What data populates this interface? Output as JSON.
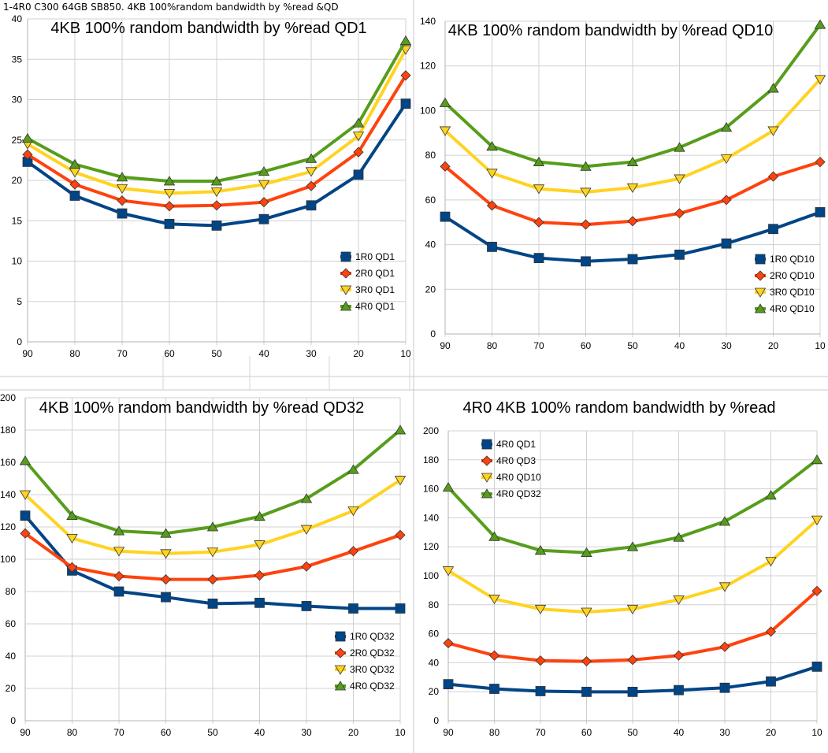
{
  "sheet_header": "1-4R0 C300 64GB SB850. 4KB 100%random bandwidth by %read  &QD",
  "chart_data": [
    {
      "type": "line",
      "title": "4KB 100% random bandwidth by %read QD1",
      "xlabel": "",
      "ylabel": "",
      "categories": [
        "90",
        "80",
        "70",
        "60",
        "50",
        "40",
        "30",
        "20",
        "10"
      ],
      "ylim": [
        0,
        40
      ],
      "ystep": 5,
      "legend": "bottom-right",
      "series": [
        {
          "name": "1R0 QD1",
          "color": "#004586",
          "marker": "square",
          "values": [
            22.3,
            18.1,
            15.9,
            14.6,
            14.4,
            15.2,
            16.9,
            20.7,
            29.5
          ]
        },
        {
          "name": "2R0 QD1",
          "color": "#ff420e",
          "marker": "diamond",
          "values": [
            23.2,
            19.5,
            17.5,
            16.8,
            16.9,
            17.3,
            19.3,
            23.5,
            33.0
          ]
        },
        {
          "name": "3R0 QD1",
          "color": "#ffd320",
          "marker": "triangle-down",
          "values": [
            24.5,
            21.0,
            19.0,
            18.4,
            18.6,
            19.5,
            21.1,
            25.5,
            36.2
          ]
        },
        {
          "name": "4R0 QD1",
          "color": "#579d1c",
          "marker": "triangle-up",
          "values": [
            25.2,
            22.0,
            20.4,
            19.9,
            19.9,
            21.1,
            22.7,
            27.1,
            37.3
          ]
        }
      ]
    },
    {
      "type": "line",
      "title": "4KB 100% random bandwidth by %read QD10",
      "xlabel": "",
      "ylabel": "",
      "categories": [
        "90",
        "80",
        "70",
        "60",
        "50",
        "40",
        "30",
        "20",
        "10"
      ],
      "ylim": [
        0,
        140
      ],
      "ystep": 20,
      "legend": "bottom-right",
      "series": [
        {
          "name": "1R0 QD10",
          "color": "#004586",
          "marker": "square",
          "values": [
            52.5,
            39.0,
            34.0,
            32.5,
            33.5,
            35.5,
            40.5,
            47.0,
            54.5
          ]
        },
        {
          "name": "2R0 QD10",
          "color": "#ff420e",
          "marker": "diamond",
          "values": [
            75.0,
            57.5,
            50.0,
            49.0,
            50.5,
            54.0,
            60.0,
            70.5,
            77.0
          ]
        },
        {
          "name": "3R0 QD10",
          "color": "#ffd320",
          "marker": "triangle-down",
          "values": [
            91.0,
            72.0,
            65.0,
            63.5,
            65.5,
            69.5,
            78.5,
            91.0,
            114.0
          ]
        },
        {
          "name": "4R0 QD10",
          "color": "#579d1c",
          "marker": "triangle-up",
          "values": [
            103.5,
            84.0,
            77.0,
            75.0,
            77.0,
            83.5,
            92.5,
            110.0,
            138.5
          ]
        }
      ]
    },
    {
      "type": "line",
      "title": "4KB 100% random bandwidth by %read QD32",
      "xlabel": "",
      "ylabel": "",
      "categories": [
        "90",
        "80",
        "70",
        "60",
        "50",
        "40",
        "30",
        "20",
        "10"
      ],
      "ylim": [
        0,
        200
      ],
      "ystep": 20,
      "legend": "bottom-right",
      "series": [
        {
          "name": "1R0 QD32",
          "color": "#004586",
          "marker": "square",
          "values": [
            127,
            93,
            80,
            76.5,
            72.5,
            73,
            71,
            69.5,
            69.5
          ]
        },
        {
          "name": "2R0 QD32",
          "color": "#ff420e",
          "marker": "diamond",
          "values": [
            116,
            95,
            89.5,
            87.5,
            87.5,
            90,
            95.5,
            105,
            115
          ]
        },
        {
          "name": "3R0 QD32",
          "color": "#ffd320",
          "marker": "triangle-down",
          "values": [
            140,
            113,
            105,
            103.5,
            104.5,
            109,
            118.5,
            130,
            149
          ]
        },
        {
          "name": "4R0 QD32",
          "color": "#579d1c",
          "marker": "triangle-up",
          "values": [
            161,
            127,
            117.5,
            116,
            120,
            126.5,
            137.5,
            155.5,
            180
          ]
        }
      ]
    },
    {
      "type": "line",
      "title": "4R0 4KB 100% random bandwidth by %read",
      "xlabel": "",
      "ylabel": "",
      "categories": [
        "90",
        "80",
        "70",
        "60",
        "50",
        "40",
        "30",
        "20",
        "10"
      ],
      "ylim": [
        0,
        200
      ],
      "ystep": 20,
      "legend": "top-left",
      "series": [
        {
          "name": "4R0 QD1",
          "color": "#004586",
          "marker": "square",
          "values": [
            25.2,
            22.0,
            20.4,
            19.9,
            19.9,
            21.1,
            22.7,
            27.1,
            37.3
          ]
        },
        {
          "name": "4R0 QD3",
          "color": "#ff420e",
          "marker": "diamond",
          "values": [
            53.5,
            45,
            41.5,
            41,
            42,
            45,
            51,
            61.5,
            89.5
          ]
        },
        {
          "name": "4R0 QD10",
          "color": "#ffd320",
          "marker": "triangle-down",
          "values": [
            103.5,
            84,
            77,
            75,
            77,
            83.5,
            92.5,
            110,
            138.5
          ]
        },
        {
          "name": "4R0 QD32",
          "color": "#579d1c",
          "marker": "triangle-up",
          "values": [
            161,
            127,
            117.5,
            116,
            120,
            126.5,
            137.5,
            155.5,
            180
          ]
        }
      ]
    }
  ]
}
